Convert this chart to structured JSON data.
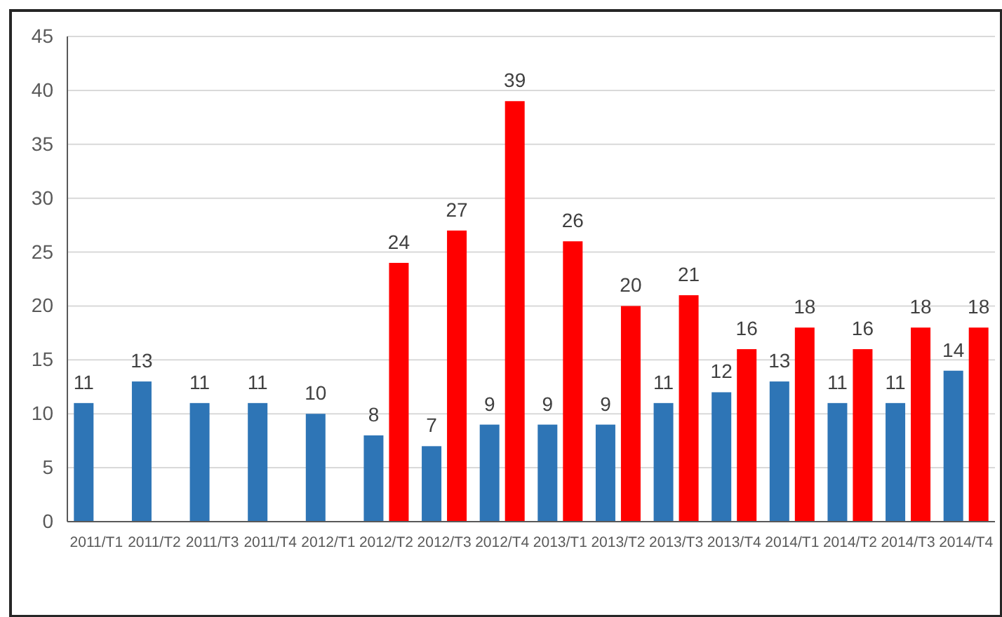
{
  "chart_data": {
    "type": "bar",
    "categories": [
      "2011/T1",
      "2011/T2",
      "2011/T3",
      "2011/T4",
      "2012/T1",
      "2012/T2",
      "2012/T3",
      "2012/T4",
      "2013/T1",
      "2013/T2",
      "2013/T3",
      "2013/T4",
      "2014/T1",
      "2014/T2",
      "2014/T3",
      "2014/T4"
    ],
    "series": [
      {
        "color": "#2e75b6",
        "values": [
          11,
          13,
          11,
          11,
          10,
          8,
          7,
          9,
          9,
          9,
          11,
          12,
          13,
          11,
          11,
          14
        ]
      },
      {
        "color": "#ff0000",
        "values": [
          null,
          null,
          null,
          null,
          null,
          24,
          27,
          39,
          26,
          20,
          21,
          16,
          18,
          16,
          18,
          18
        ]
      }
    ],
    "ylim": [
      0,
      45
    ],
    "yticks": [
      0,
      5,
      10,
      15,
      20,
      25,
      30,
      35,
      40,
      45
    ],
    "grid": "y",
    "data_labels": true
  }
}
